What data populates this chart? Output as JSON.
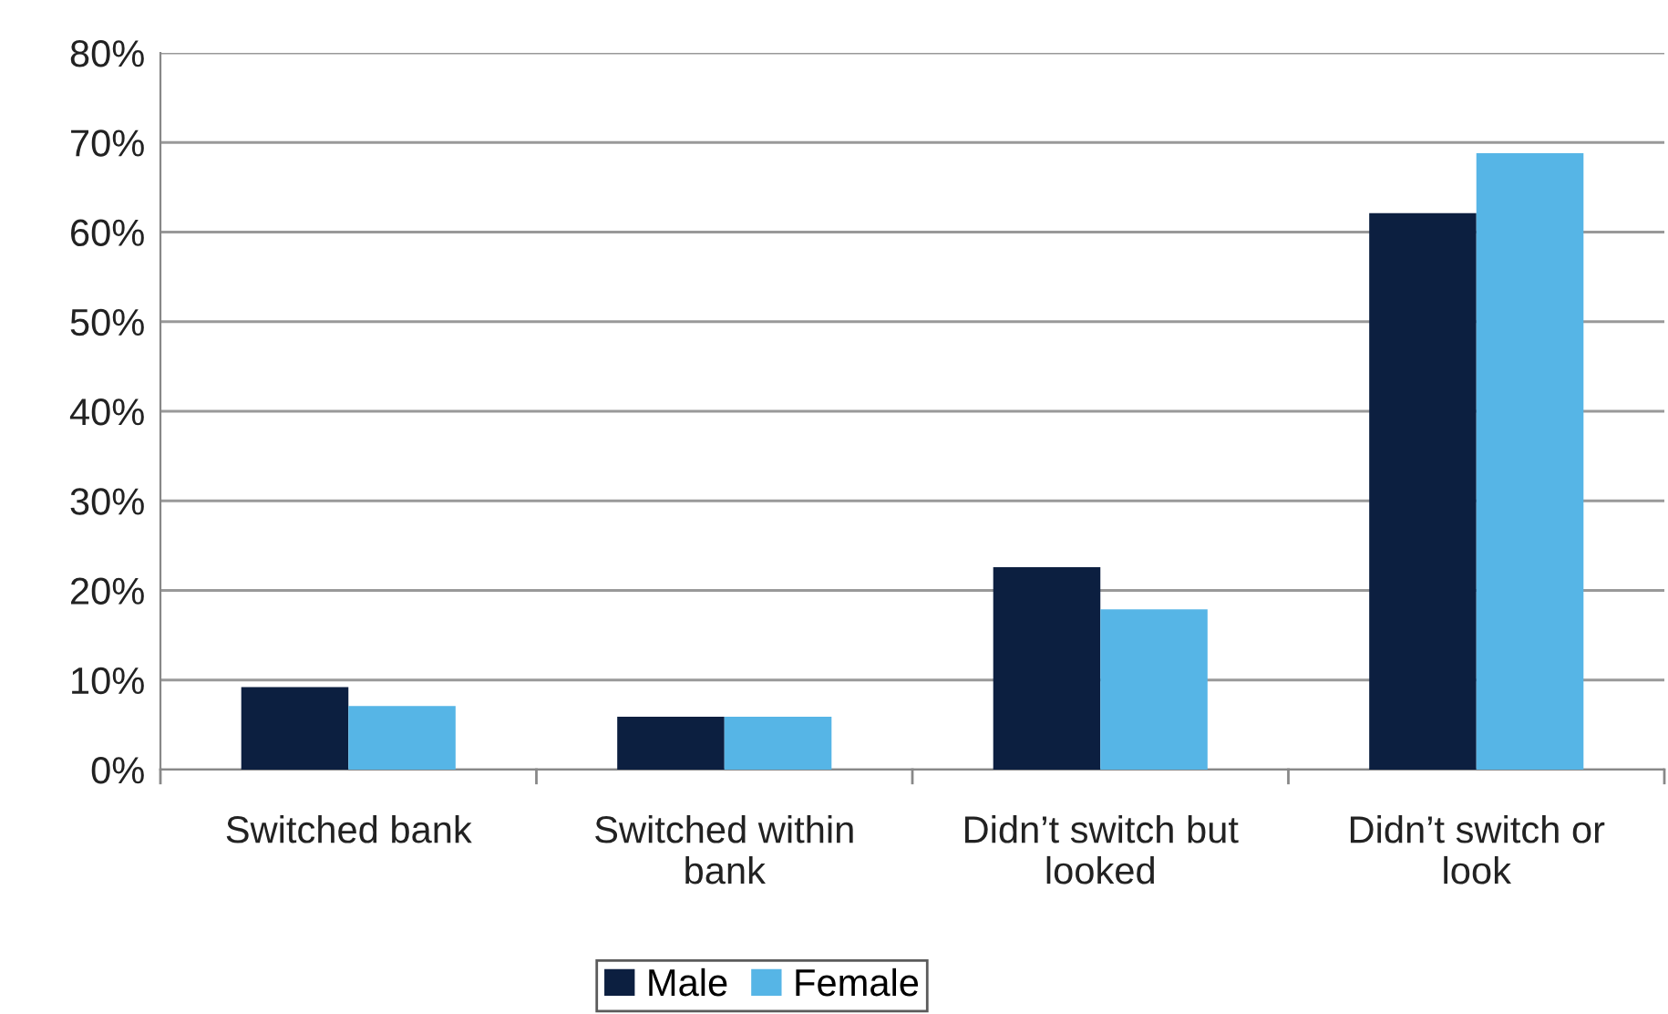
{
  "chart_data": {
    "type": "bar",
    "categories": [
      "Switched bank",
      "Switched within bank",
      "Didn’t switch but looked",
      "Didn’t switch or look"
    ],
    "series": [
      {
        "name": "Male",
        "color": "#0c1f40",
        "values": [
          9.2,
          5.9,
          22.6,
          62.1
        ]
      },
      {
        "name": "Female",
        "color": "#56b5e6",
        "values": [
          7.1,
          5.9,
          17.9,
          68.8
        ]
      }
    ],
    "ylim": [
      0,
      80
    ],
    "yticks": [
      {
        "value": 0,
        "label": "0%"
      },
      {
        "value": 10,
        "label": "10%"
      },
      {
        "value": 20,
        "label": "20%"
      },
      {
        "value": 30,
        "label": "30%"
      },
      {
        "value": 40,
        "label": "40%"
      },
      {
        "value": 50,
        "label": "50%"
      },
      {
        "value": 60,
        "label": "60%"
      },
      {
        "value": 70,
        "label": "70%"
      },
      {
        "value": 80,
        "label": "80%"
      }
    ],
    "grid": "y",
    "legend": "bottom"
  }
}
